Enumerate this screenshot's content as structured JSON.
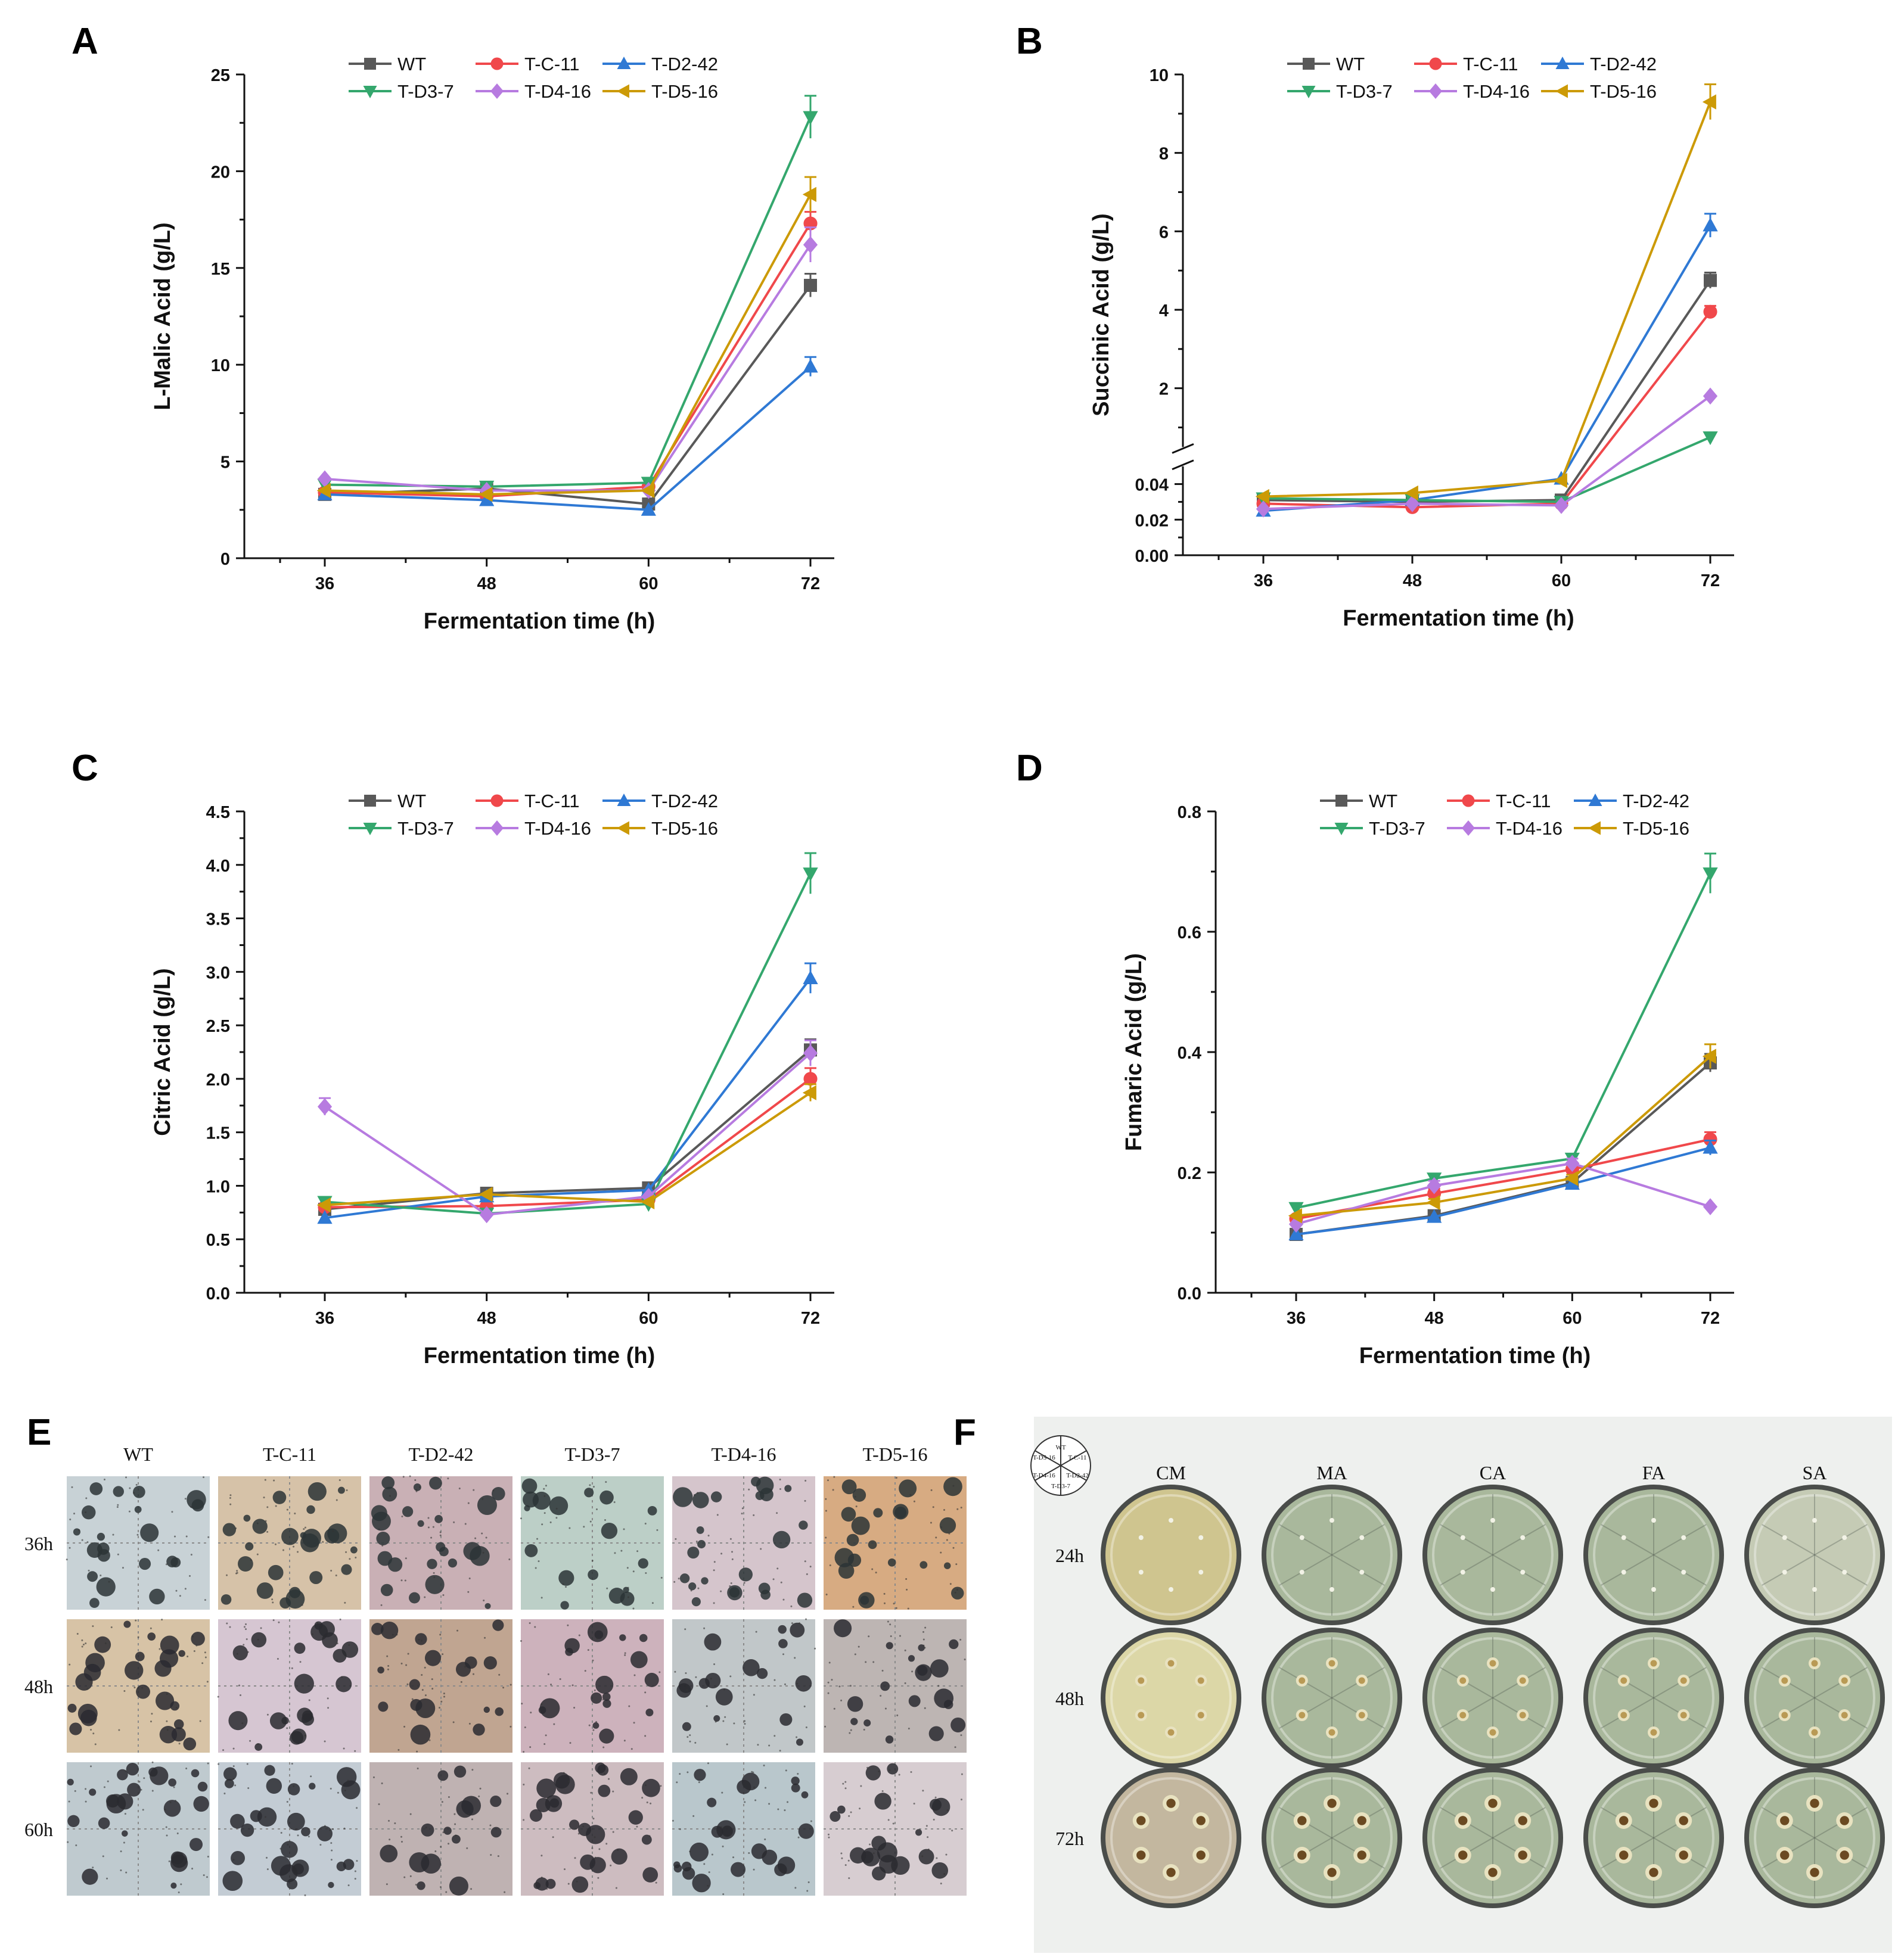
{
  "chart_data": [
    {
      "panel": "A",
      "type": "line",
      "x": [
        36,
        48,
        60,
        72
      ],
      "xlabel": "Fermentation time (h)",
      "ylabel": "L-Malic Acid (g/L)",
      "ylim": [
        0,
        25
      ],
      "yticks": [
        0,
        5,
        10,
        15,
        20,
        25
      ],
      "ytick_labels": [
        "0",
        "5",
        "10",
        "15",
        "20",
        "25"
      ],
      "series": [
        {
          "name": "WT",
          "color": "#595959",
          "marker": "square",
          "values": [
            3.3,
            3.6,
            2.8,
            14.1
          ],
          "err": [
            0.1,
            0.1,
            0.1,
            0.6
          ]
        },
        {
          "name": "T-C-11",
          "color": "#f0484b",
          "marker": "circle",
          "values": [
            3.4,
            3.2,
            3.7,
            17.3
          ],
          "err": [
            0.1,
            0.1,
            0.1,
            0.6
          ]
        },
        {
          "name": "T-D2-42",
          "color": "#2f79d4",
          "marker": "triangle-up",
          "values": [
            3.3,
            3.0,
            2.5,
            9.9
          ],
          "err": [
            0.1,
            0.1,
            0.1,
            0.5
          ]
        },
        {
          "name": "T-D3-7",
          "color": "#34a76d",
          "marker": "triangle-down",
          "values": [
            3.8,
            3.7,
            3.9,
            22.8
          ],
          "err": [
            0.1,
            0.1,
            0.1,
            1.1
          ]
        },
        {
          "name": "T-D4-16",
          "color": "#b77be0",
          "marker": "diamond",
          "values": [
            4.1,
            3.5,
            3.5,
            16.2
          ],
          "err": [
            0.1,
            0.1,
            0.1,
            0.9
          ]
        },
        {
          "name": "T-D5-16",
          "color": "#cc9a06",
          "marker": "triangle-left",
          "values": [
            3.5,
            3.3,
            3.5,
            18.8
          ],
          "err": [
            0.1,
            0.1,
            0.1,
            0.9
          ]
        }
      ]
    },
    {
      "panel": "B",
      "type": "line",
      "x": [
        36,
        48,
        60,
        72
      ],
      "xlabel": "Fermentation time (h)",
      "ylabel": "Succinic Acid (g/L)",
      "broken_axis": {
        "lower": [
          0,
          0.05
        ],
        "upper": [
          0.5,
          10
        ]
      },
      "yticks": [
        0,
        0.02,
        0.04,
        2,
        4,
        6,
        8,
        10
      ],
      "ytick_labels": [
        "0.00",
        "0.02",
        "0.04",
        "2",
        "4",
        "6",
        "8",
        "10"
      ],
      "series": [
        {
          "name": "WT",
          "color": "#595959",
          "marker": "square",
          "values": [
            0.031,
            0.03,
            0.031,
            4.75
          ],
          "err": [
            0.001,
            0.001,
            0.001,
            0.2
          ]
        },
        {
          "name": "T-C-11",
          "color": "#f0484b",
          "marker": "circle",
          "values": [
            0.029,
            0.027,
            0.029,
            3.95
          ],
          "err": [
            0.001,
            0.001,
            0.001,
            0.15
          ]
        },
        {
          "name": "T-D2-42",
          "color": "#2f79d4",
          "marker": "triangle-up",
          "values": [
            0.025,
            0.031,
            0.043,
            6.15
          ],
          "err": [
            0.001,
            0.001,
            0.001,
            0.3
          ]
        },
        {
          "name": "T-D3-7",
          "color": "#34a76d",
          "marker": "triangle-down",
          "values": [
            0.032,
            0.031,
            0.03,
            0.75
          ],
          "err": [
            0.001,
            0.001,
            0.001,
            0.05
          ]
        },
        {
          "name": "T-D4-16",
          "color": "#b77be0",
          "marker": "diamond",
          "values": [
            0.026,
            0.029,
            0.028,
            1.8
          ],
          "err": [
            0.001,
            0.001,
            0.001,
            0.05
          ]
        },
        {
          "name": "T-D5-16",
          "color": "#cc9a06",
          "marker": "triangle-left",
          "values": [
            0.033,
            0.035,
            0.042,
            9.3
          ],
          "err": [
            0.001,
            0.001,
            0.001,
            0.45
          ]
        }
      ]
    },
    {
      "panel": "C",
      "type": "line",
      "x": [
        36,
        48,
        60,
        72
      ],
      "xlabel": "Fermentation time (h)",
      "ylabel": "Citric Acid (g/L)",
      "ylim": [
        0,
        4.5
      ],
      "yticks": [
        0,
        0.5,
        1.0,
        1.5,
        2.0,
        2.5,
        3.0,
        3.5,
        4.0,
        4.5
      ],
      "ytick_labels": [
        "0.0",
        "0.5",
        "1.0",
        "1.5",
        "2.0",
        "2.5",
        "3.0",
        "3.5",
        "4.0",
        "4.5"
      ],
      "series": [
        {
          "name": "WT",
          "color": "#595959",
          "marker": "square",
          "values": [
            0.78,
            0.93,
            0.98,
            2.27
          ],
          "err": [
            0.03,
            0.03,
            0.03,
            0.1
          ]
        },
        {
          "name": "T-C-11",
          "color": "#f0484b",
          "marker": "circle",
          "values": [
            0.8,
            0.81,
            0.87,
            2.0
          ],
          "err": [
            0.03,
            0.03,
            0.03,
            0.1
          ]
        },
        {
          "name": "T-D2-42",
          "color": "#2f79d4",
          "marker": "triangle-up",
          "values": [
            0.7,
            0.9,
            0.96,
            2.94
          ],
          "err": [
            0.03,
            0.03,
            0.03,
            0.14
          ]
        },
        {
          "name": "T-D3-7",
          "color": "#34a76d",
          "marker": "triangle-down",
          "values": [
            0.85,
            0.74,
            0.83,
            3.92
          ],
          "err": [
            0.03,
            0.03,
            0.03,
            0.19
          ]
        },
        {
          "name": "T-D4-16",
          "color": "#b77be0",
          "marker": "diamond",
          "values": [
            1.74,
            0.73,
            0.9,
            2.24
          ],
          "err": [
            0.08,
            0.03,
            0.03,
            0.12
          ]
        },
        {
          "name": "T-D5-16",
          "color": "#cc9a06",
          "marker": "triangle-left",
          "values": [
            0.82,
            0.92,
            0.85,
            1.87
          ],
          "err": [
            0.03,
            0.03,
            0.03,
            0.08
          ]
        }
      ]
    },
    {
      "panel": "D",
      "type": "line",
      "x": [
        36,
        48,
        60,
        72
      ],
      "xlabel": "Fermentation time (h)",
      "ylabel": "Fumaric Acid (g/L)",
      "ylim": [
        0,
        0.8
      ],
      "yticks": [
        0,
        0.2,
        0.4,
        0.6,
        0.8
      ],
      "ytick_labels": [
        "0.0",
        "0.2",
        "0.4",
        "0.6",
        "0.8"
      ],
      "series": [
        {
          "name": "WT",
          "color": "#595959",
          "marker": "square",
          "values": [
            0.097,
            0.128,
            0.183,
            0.382
          ],
          "err": [
            0.004,
            0.004,
            0.006,
            0.015
          ]
        },
        {
          "name": "T-C-11",
          "color": "#f0484b",
          "marker": "circle",
          "values": [
            0.123,
            0.165,
            0.205,
            0.255
          ],
          "err": [
            0.005,
            0.008,
            0.008,
            0.012
          ]
        },
        {
          "name": "T-D2-42",
          "color": "#2f79d4",
          "marker": "triangle-up",
          "values": [
            0.097,
            0.126,
            0.181,
            0.241
          ],
          "err": [
            0.004,
            0.004,
            0.006,
            0.012
          ]
        },
        {
          "name": "T-D3-7",
          "color": "#34a76d",
          "marker": "triangle-down",
          "values": [
            0.141,
            0.19,
            0.223,
            0.697
          ],
          "err": [
            0.004,
            0.008,
            0.008,
            0.033
          ]
        },
        {
          "name": "T-D4-16",
          "color": "#b77be0",
          "marker": "diamond",
          "values": [
            0.114,
            0.178,
            0.215,
            0.143
          ],
          "err": [
            0.004,
            0.008,
            0.008,
            0.005
          ]
        },
        {
          "name": "T-D5-16",
          "color": "#cc9a06",
          "marker": "triangle-left",
          "values": [
            0.128,
            0.15,
            0.19,
            0.393
          ],
          "err": [
            0.004,
            0.006,
            0.006,
            0.02
          ]
        }
      ]
    }
  ],
  "panel_letters": [
    "A",
    "B",
    "C",
    "D",
    "E",
    "F"
  ],
  "panel_e": {
    "columns": [
      "WT",
      "T-C-11",
      "T-D2-42",
      "T-D3-7",
      "T-D4-16",
      "T-D5-16"
    ],
    "rows": [
      "36h",
      "48h",
      "60h"
    ]
  },
  "panel_f": {
    "columns": [
      "CM",
      "MA",
      "CA",
      "FA",
      "SA"
    ],
    "rows": [
      "24h",
      "48h",
      "72h"
    ],
    "key_labels": [
      "WT",
      "T-C-11",
      "T-D2-42",
      "T-D3-7",
      "T-D4-16",
      "T-D5-16"
    ]
  }
}
